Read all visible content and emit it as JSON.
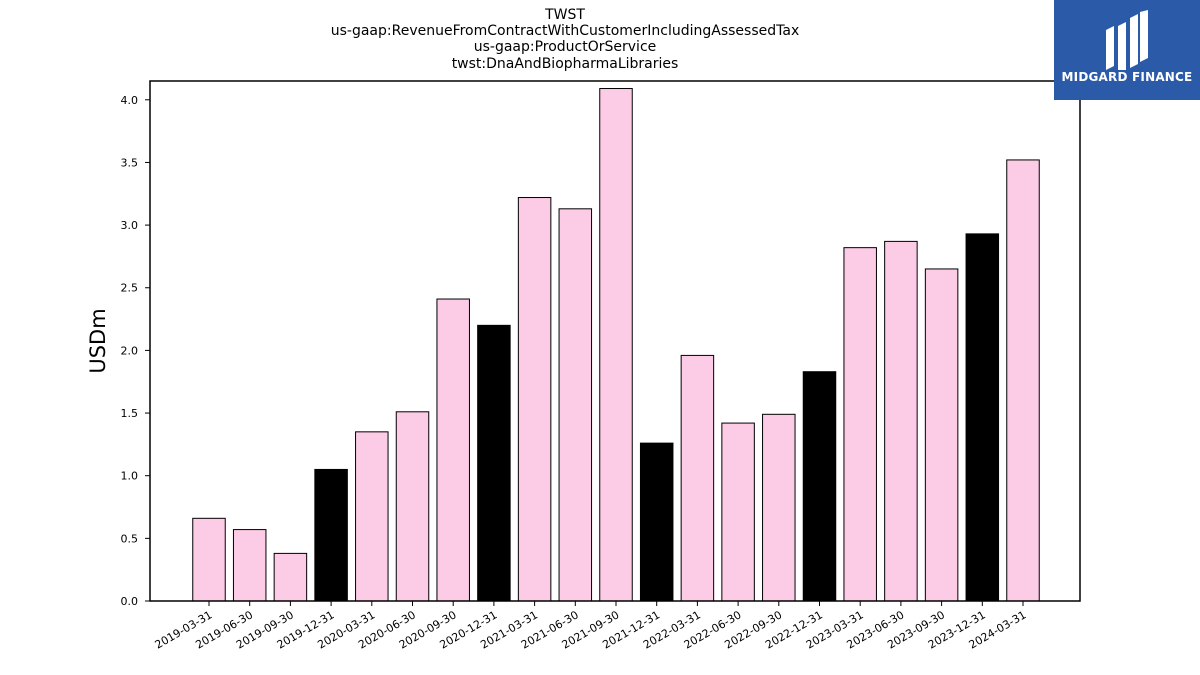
{
  "title_lines": [
    "TWST",
    "us-gaap:RevenueFromContractWithCustomerIncludingAssessedTax",
    "us-gaap:ProductOrService",
    "twst:DnaAndBiopharmaLibraries"
  ],
  "logo": {
    "text": "MIDGARD FINANCE",
    "bg_color": "#2b5ba8"
  },
  "chart_data": {
    "type": "bar",
    "ylabel": "USDm",
    "xlabel": "",
    "ylim": [
      0,
      4.15
    ],
    "yticks": [
      0.0,
      0.5,
      1.0,
      1.5,
      2.0,
      2.5,
      3.0,
      3.5,
      4.0
    ],
    "ytick_labels": [
      "0.0",
      "0.5",
      "1.0",
      "1.5",
      "2.0",
      "2.5",
      "3.0",
      "3.5",
      "4.0"
    ],
    "grid": false,
    "colors": {
      "quarter": "#fccbe5",
      "year_end": "#000000",
      "edge": "#000000"
    },
    "categories": [
      "2019-03-31",
      "2019-06-30",
      "2019-09-30",
      "2019-12-31",
      "2020-03-31",
      "2020-06-30",
      "2020-09-30",
      "2020-12-31",
      "2021-03-31",
      "2021-06-30",
      "2021-09-30",
      "2021-12-31",
      "2022-03-31",
      "2022-06-30",
      "2022-09-30",
      "2022-12-31",
      "2023-03-31",
      "2023-06-30",
      "2023-09-30",
      "2023-12-31",
      "2024-03-31"
    ],
    "values": [
      0.66,
      0.57,
      0.38,
      1.05,
      1.35,
      1.51,
      2.41,
      2.2,
      3.22,
      3.13,
      4.09,
      1.26,
      1.96,
      1.42,
      1.49,
      1.83,
      2.82,
      2.87,
      2.65,
      2.93,
      3.52
    ],
    "highlight": [
      false,
      false,
      false,
      true,
      false,
      false,
      false,
      true,
      false,
      false,
      false,
      true,
      false,
      false,
      false,
      true,
      false,
      false,
      false,
      true,
      false
    ]
  }
}
